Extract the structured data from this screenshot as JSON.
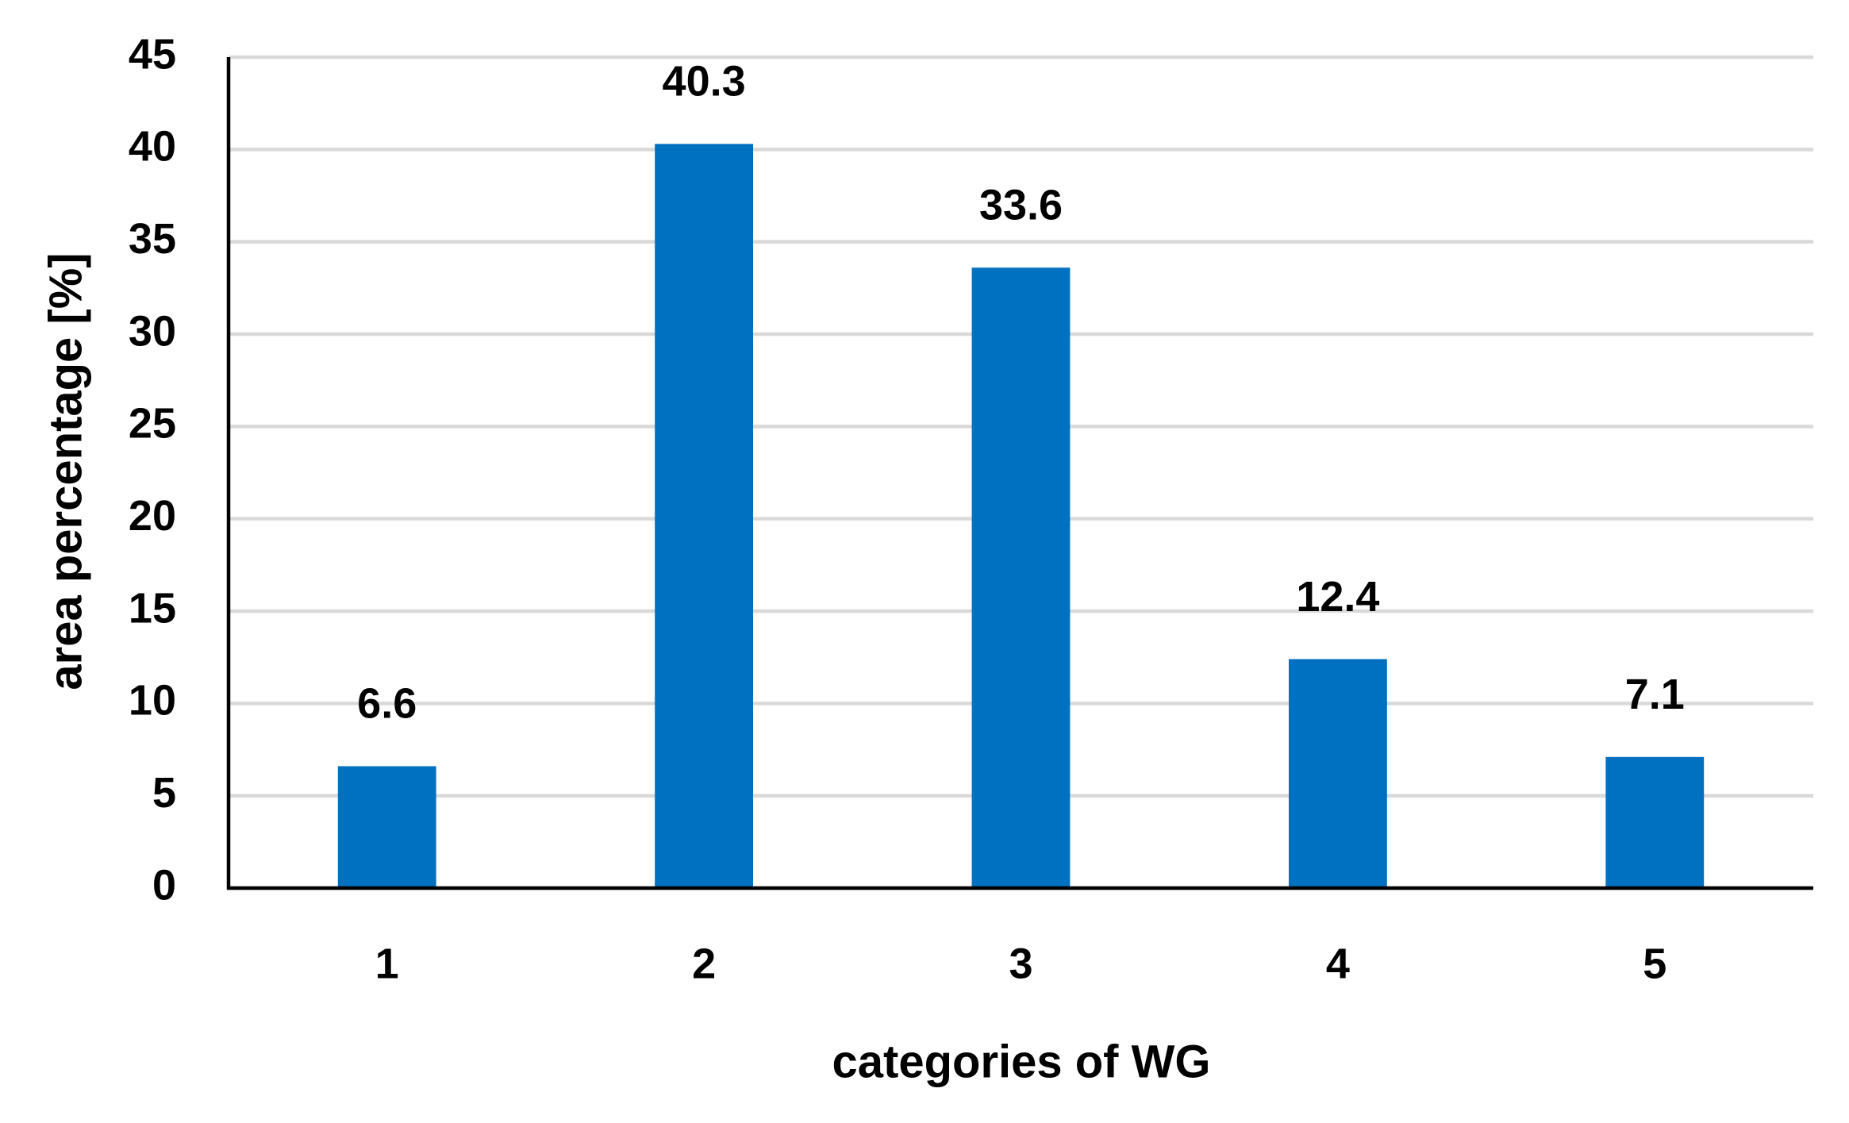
{
  "chart_data": {
    "type": "bar",
    "x_label": "categories of WG",
    "y_label": "area percentage [%]",
    "categories": [
      "1",
      "2",
      "3",
      "4",
      "5"
    ],
    "values": [
      6.6,
      40.3,
      33.6,
      12.4,
      7.1
    ],
    "color": "#0070c0",
    "ylim": [
      0,
      45
    ],
    "yticks": [
      0,
      5,
      10,
      15,
      20,
      25,
      30,
      35,
      40,
      45
    ],
    "grid": true
  }
}
